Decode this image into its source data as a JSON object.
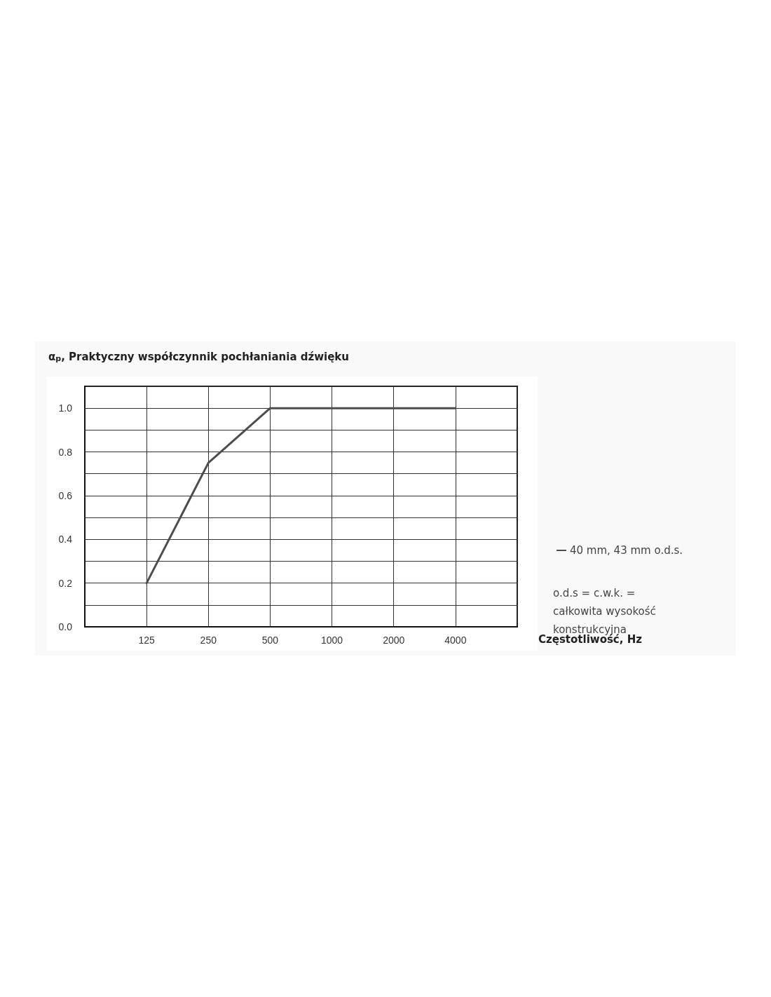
{
  "chart_data": {
    "type": "line",
    "title": "α$_{p}$, Praktyczny współczynnik pochłaniania dźwięku",
    "xlabel": "Częstotliwość, Hz",
    "categories": [
      null,
      "125",
      "250",
      "500",
      "1000",
      "2000",
      "4000",
      null
    ],
    "series": [
      {
        "name": "40 mm, 43 mm o.d.s.",
        "color": "#4d4d4d",
        "values": [
          null,
          0.2,
          0.75,
          1.0,
          1.0,
          1.0,
          1.0,
          null
        ]
      }
    ],
    "ylim": [
      0,
      1.1
    ],
    "yticks": [
      {
        "value": 0,
        "label": "0.0"
      },
      {
        "value": 0.1,
        "label": null
      },
      {
        "value": 0.2,
        "label": "0.2"
      },
      {
        "value": 0.3,
        "label": null
      },
      {
        "value": 0.4,
        "label": "0.4"
      },
      {
        "value": 0.5,
        "label": null
      },
      {
        "value": 0.6,
        "label": "0.6"
      },
      {
        "value": 0.7,
        "label": null
      },
      {
        "value": 0.8,
        "label": "0.8"
      },
      {
        "value": 0.9,
        "label": null
      },
      {
        "value": 1,
        "label": "1.0"
      }
    ],
    "annotations": [
      "o.d.s = c.w.k. = całkowita wysokość konstrukcyjna"
    ],
    "grid": true,
    "legend": "right",
    "marker": "none",
    "line_style": "solid"
  }
}
